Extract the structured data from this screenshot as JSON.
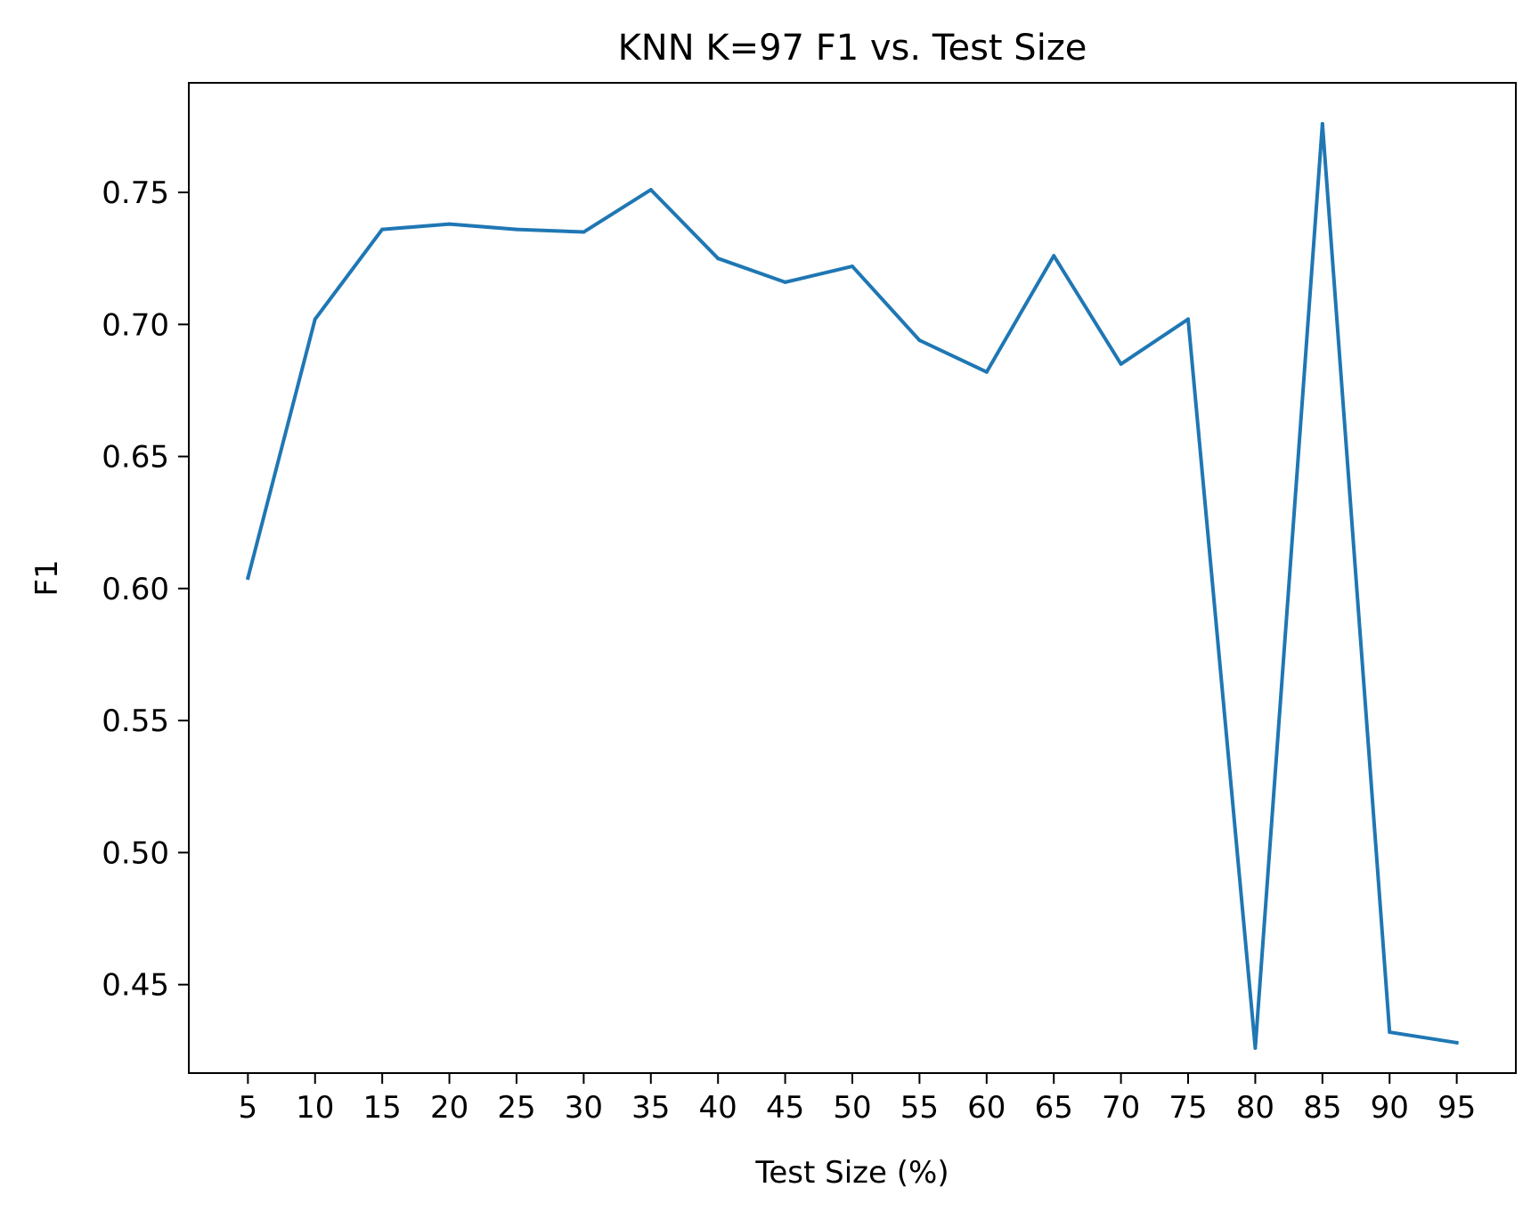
{
  "chart_data": {
    "type": "line",
    "title": "KNN K=97  F1 vs. Test Size",
    "xlabel": "Test Size (%)",
    "ylabel": "F1",
    "x": [
      5,
      10,
      15,
      20,
      25,
      30,
      35,
      40,
      45,
      50,
      55,
      60,
      65,
      70,
      75,
      80,
      85,
      90,
      95
    ],
    "x_tick_labels": [
      "5",
      "10",
      "15",
      "20",
      "25",
      "30",
      "35",
      "40",
      "45",
      "50",
      "55",
      "60",
      "65",
      "70",
      "75",
      "80",
      "85",
      "90",
      "95"
    ],
    "y_ticks": [
      0.45,
      0.5,
      0.55,
      0.6,
      0.65,
      0.7,
      0.75
    ],
    "y_tick_labels": [
      "0.45",
      "0.50",
      "0.55",
      "0.60",
      "0.65",
      "0.70",
      "0.75"
    ],
    "xlim": [
      0.6,
      99.4
    ],
    "ylim": [
      0.4165,
      0.7915
    ],
    "series": [
      {
        "color": "#1f77b4",
        "values": [
          0.604,
          0.702,
          0.736,
          0.738,
          0.736,
          0.735,
          0.751,
          0.725,
          0.716,
          0.722,
          0.694,
          0.682,
          0.726,
          0.685,
          0.702,
          0.426,
          0.776,
          0.432,
          0.428
        ]
      }
    ],
    "grid": false,
    "legend": "none"
  }
}
